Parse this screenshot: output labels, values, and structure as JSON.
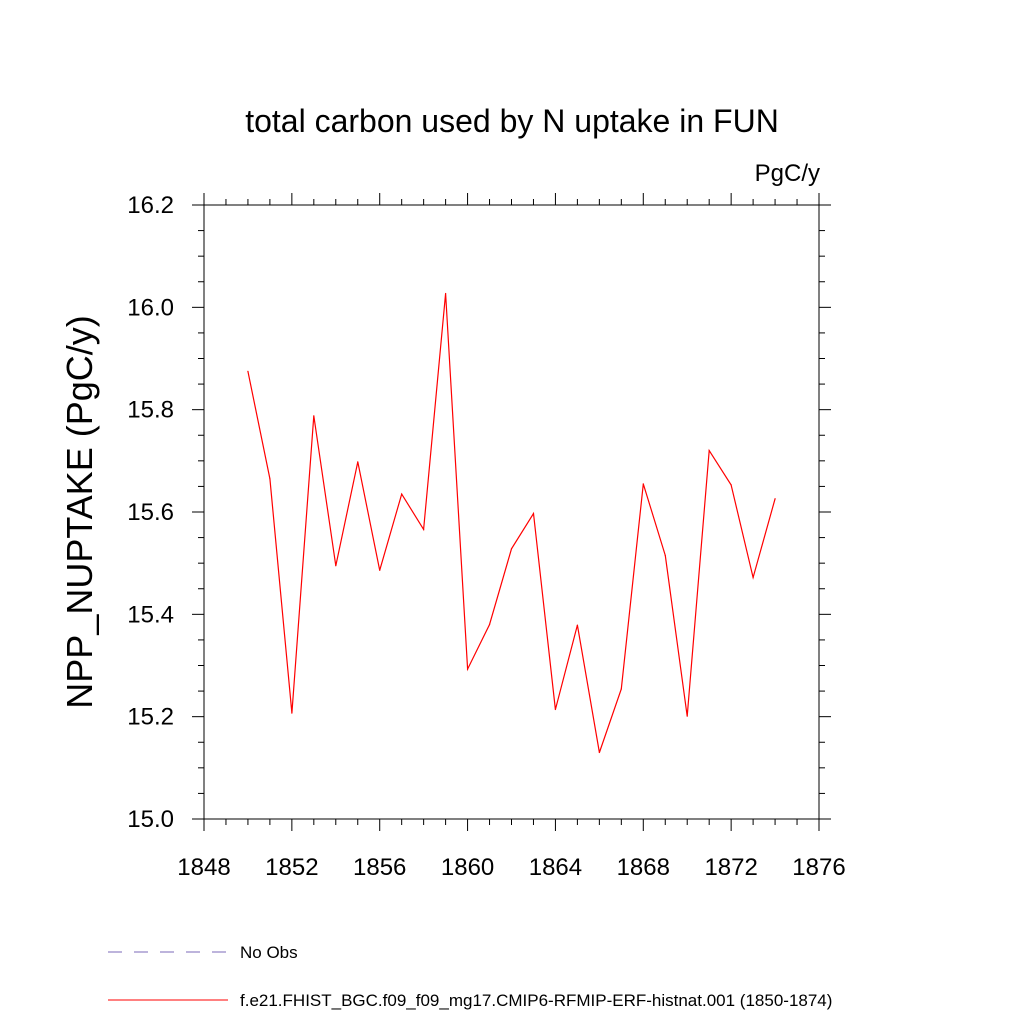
{
  "chart_data": {
    "type": "line",
    "title": "total carbon used by N uptake in FUN",
    "units": "PgC/y",
    "xlabel": "",
    "ylabel": "NPP_NUPTAKE  (PgC/y)",
    "xlim": [
      1848,
      1876
    ],
    "ylim": [
      15.0,
      16.2
    ],
    "x_ticks": [
      "1848",
      "1852",
      "1856",
      "1860",
      "1864",
      "1868",
      "1872",
      "1876"
    ],
    "y_ticks": [
      "15.0",
      "15.2",
      "15.4",
      "15.6",
      "15.8",
      "16.0",
      "16.2"
    ],
    "grid": false,
    "legend_position": "bottom",
    "series": [
      {
        "name": "f.e21.FHIST_BGC.f09_f09_mg17.CMIP6-RFMIP-ERF-histnat.001 (1850-1874)",
        "color": "#ff0000",
        "style": "solid",
        "x": [
          1850,
          1851,
          1852,
          1853,
          1854,
          1855,
          1856,
          1857,
          1858,
          1859,
          1860,
          1861,
          1862,
          1863,
          1864,
          1865,
          1866,
          1867,
          1868,
          1869,
          1870,
          1871,
          1872,
          1873,
          1874
        ],
        "y": [
          15.875,
          15.665,
          15.207,
          15.788,
          15.495,
          15.698,
          15.486,
          15.635,
          15.566,
          16.027,
          15.293,
          15.38,
          15.528,
          15.597,
          15.214,
          15.379,
          15.13,
          15.254,
          15.655,
          15.515,
          15.201,
          15.72,
          15.653,
          15.472,
          15.626
        ]
      }
    ],
    "legend": [
      {
        "label": "No Obs",
        "color": "#7b68b8",
        "style": "dashed"
      },
      {
        "label": "f.e21.FHIST_BGC.f09_f09_mg17.CMIP6-RFMIP-ERF-histnat.001 (1850-1874)",
        "color": "#ff0000",
        "style": "solid"
      }
    ]
  }
}
